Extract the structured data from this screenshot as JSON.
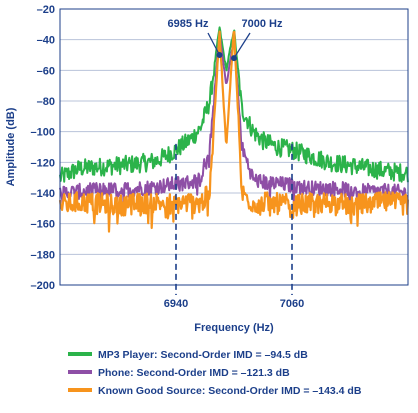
{
  "chart_data": {
    "type": "line",
    "xlabel": "Frequency (Hz)",
    "ylabel": "Amplitude (dB)",
    "ylim": [
      -200,
      -20
    ],
    "xlim": [
      6820,
      7180
    ],
    "yticks": [
      -20,
      -40,
      -60,
      -80,
      -100,
      -120,
      -140,
      -160,
      -180,
      -200
    ],
    "xticks": [
      6940,
      7060
    ],
    "grid": true,
    "legend_position": "bottom",
    "annotations": [
      {
        "text": "6985 Hz",
        "x": 6985,
        "y": -50
      },
      {
        "text": "7000 Hz",
        "x": 7000,
        "y": -52
      }
    ],
    "series": [
      {
        "name": "MP3 Player: Second-Order IMD = –94.5 dB",
        "color": "#2bb34a",
        "x": [
          6820,
          6840,
          6860,
          6880,
          6900,
          6920,
          6940,
          6955,
          6965,
          6975,
          6985,
          6992,
          7000,
          7008,
          7020,
          7030,
          7045,
          7060,
          7080,
          7100,
          7120,
          7140,
          7160,
          7180
        ],
        "y": [
          -130,
          -124,
          -123,
          -122,
          -121,
          -119,
          -112,
          -105,
          -98,
          -80,
          -32,
          -60,
          -33,
          -85,
          -100,
          -106,
          -110,
          -112,
          -116,
          -120,
          -122,
          -124,
          -126,
          -127
        ]
      },
      {
        "name": "Phone: Second-Order IMD = –121.3 dB",
        "color": "#8e4fa6",
        "x": [
          6820,
          6840,
          6860,
          6880,
          6900,
          6920,
          6940,
          6955,
          6965,
          6975,
          6985,
          6992,
          7000,
          7008,
          7020,
          7030,
          7045,
          7060,
          7080,
          7100,
          7120,
          7140,
          7160,
          7180
        ],
        "y": [
          -140,
          -139,
          -138,
          -138,
          -137,
          -136,
          -134,
          -133,
          -131,
          -110,
          -36,
          -70,
          -38,
          -110,
          -131,
          -133,
          -134,
          -135,
          -137,
          -137,
          -138,
          -139,
          -139,
          -140
        ]
      },
      {
        "name": "Known Good Source: Second-Order IMD = –143.4 dB",
        "color": "#f7941d",
        "x": [
          6820,
          6840,
          6860,
          6880,
          6900,
          6920,
          6940,
          6955,
          6965,
          6975,
          6985,
          6992,
          7000,
          7008,
          7020,
          7030,
          7045,
          7060,
          7080,
          7100,
          7120,
          7140,
          7160,
          7180
        ],
        "y": [
          -148,
          -146,
          -147,
          -148,
          -147,
          -146,
          -147,
          -146,
          -147,
          -140,
          -35,
          -110,
          -32,
          -140,
          -147,
          -146,
          -147,
          -148,
          -147,
          -146,
          -148,
          -147,
          -146,
          -148
        ]
      }
    ]
  }
}
